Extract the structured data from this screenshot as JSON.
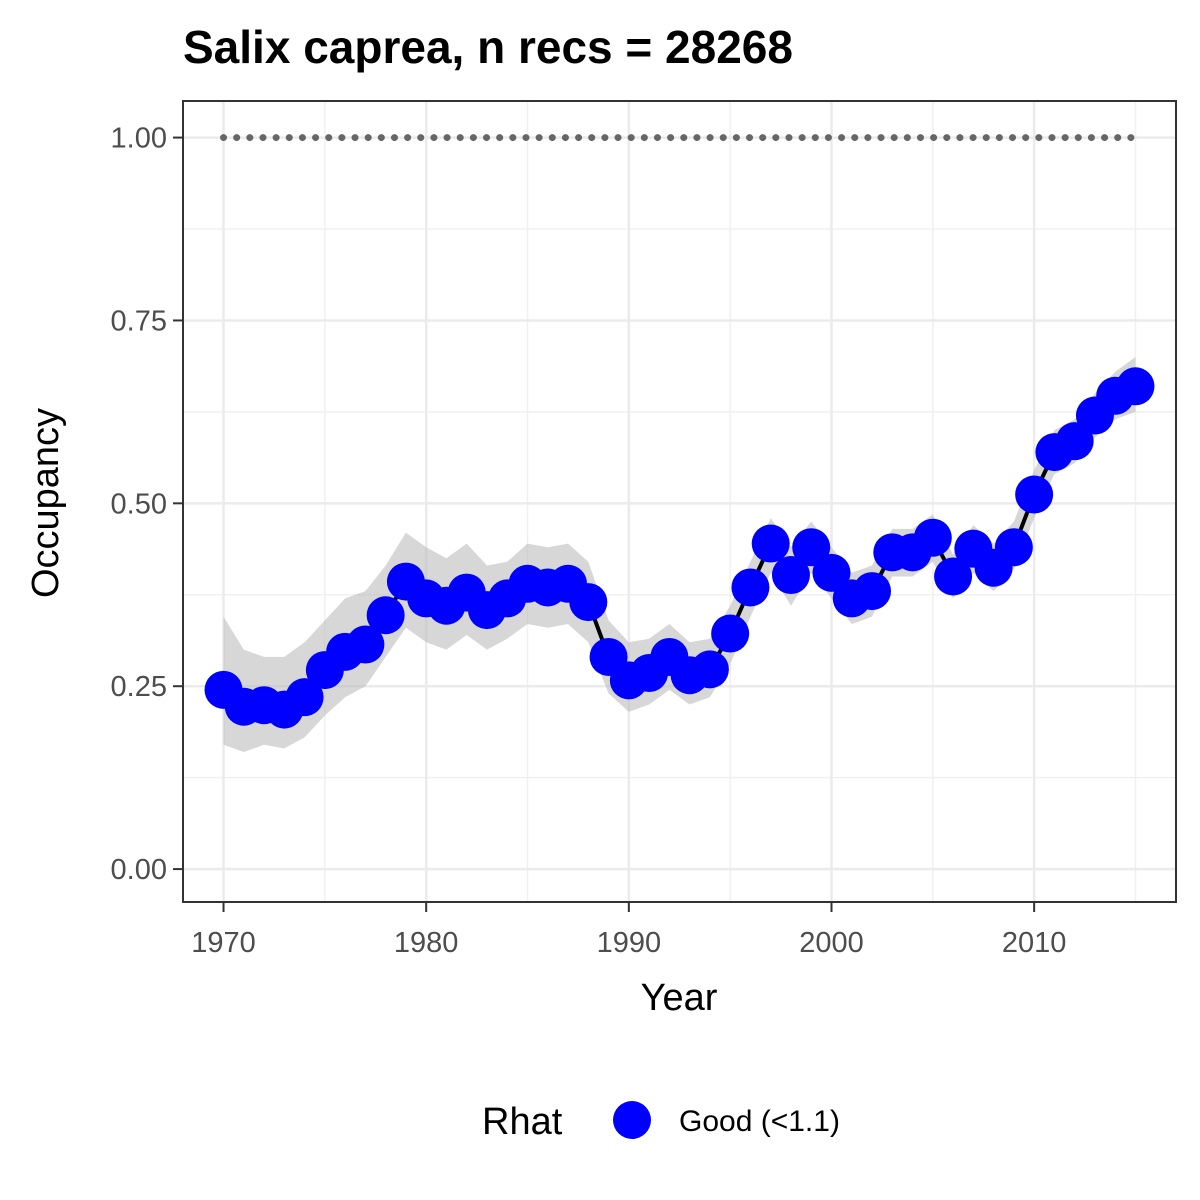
{
  "chart_data": {
    "type": "line",
    "title": "Salix caprea, n recs = 28268",
    "xlabel": "Year",
    "ylabel": "Occupancy",
    "xlim": [
      1968,
      2017
    ],
    "ylim": [
      -0.045,
      1.05
    ],
    "x_ticks": [
      1970,
      1980,
      1990,
      2000,
      2010
    ],
    "x_tick_labels": [
      "1970",
      "1980",
      "1990",
      "2000",
      "2010"
    ],
    "y_ticks": [
      0,
      0.25,
      0.5,
      0.75,
      1
    ],
    "y_tick_labels": [
      "0.00",
      "0.25",
      "0.50",
      "0.75",
      "1.00"
    ],
    "grid": true,
    "legend": {
      "title": "Rhat",
      "position": "bottom",
      "entries": [
        {
          "label": "Good (<1.1)",
          "color": "#0000ff"
        }
      ]
    },
    "colors": {
      "points": "#0000ff",
      "line": "#000000",
      "ribbon": "#bdbdbd",
      "reference": "#666666"
    },
    "reference_line": {
      "y": 1.0,
      "style": "dotted"
    },
    "x": [
      1970,
      1971,
      1972,
      1973,
      1974,
      1975,
      1976,
      1977,
      1978,
      1979,
      1980,
      1981,
      1982,
      1983,
      1984,
      1985,
      1986,
      1987,
      1988,
      1989,
      1990,
      1991,
      1992,
      1993,
      1994,
      1995,
      1996,
      1997,
      1998,
      1999,
      2000,
      2001,
      2002,
      2003,
      2004,
      2005,
      2006,
      2007,
      2008,
      2009,
      2010,
      2011,
      2012,
      2013,
      2014,
      2015
    ],
    "y": [
      0.245,
      0.222,
      0.224,
      0.218,
      0.235,
      0.272,
      0.297,
      0.307,
      0.347,
      0.393,
      0.37,
      0.36,
      0.378,
      0.354,
      0.37,
      0.39,
      0.385,
      0.39,
      0.365,
      0.29,
      0.258,
      0.268,
      0.29,
      0.265,
      0.273,
      0.322,
      0.385,
      0.445,
      0.402,
      0.44,
      0.405,
      0.37,
      0.38,
      0.433,
      0.433,
      0.453,
      0.4,
      0.438,
      0.412,
      0.44,
      0.512,
      0.57,
      0.585,
      0.62,
      0.647,
      0.66
    ],
    "lower": [
      0.17,
      0.16,
      0.17,
      0.165,
      0.18,
      0.21,
      0.235,
      0.25,
      0.29,
      0.33,
      0.31,
      0.3,
      0.32,
      0.3,
      0.315,
      0.335,
      0.33,
      0.335,
      0.31,
      0.24,
      0.215,
      0.225,
      0.245,
      0.225,
      0.235,
      0.28,
      0.345,
      0.405,
      0.36,
      0.405,
      0.37,
      0.335,
      0.345,
      0.4,
      0.4,
      0.42,
      0.37,
      0.405,
      0.38,
      0.41,
      0.48,
      0.54,
      0.555,
      0.59,
      0.615,
      0.625
    ],
    "upper": [
      0.345,
      0.3,
      0.29,
      0.29,
      0.31,
      0.34,
      0.37,
      0.38,
      0.415,
      0.46,
      0.44,
      0.425,
      0.445,
      0.415,
      0.42,
      0.445,
      0.44,
      0.445,
      0.42,
      0.34,
      0.31,
      0.315,
      0.335,
      0.31,
      0.315,
      0.36,
      0.42,
      0.48,
      0.44,
      0.475,
      0.44,
      0.405,
      0.415,
      0.465,
      0.465,
      0.485,
      0.43,
      0.47,
      0.445,
      0.475,
      0.545,
      0.6,
      0.615,
      0.65,
      0.68,
      0.7
    ]
  }
}
